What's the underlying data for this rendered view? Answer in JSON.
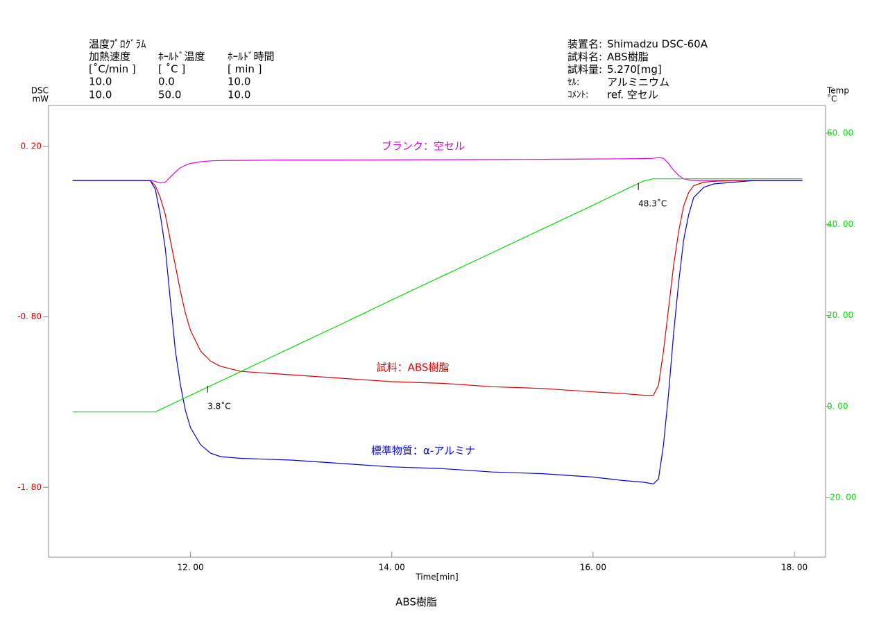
{
  "chart_data": {
    "type": "line",
    "title": "ABS樹脂",
    "xlabel": "Time[min]",
    "ylabel": [
      "DSC",
      "mW"
    ],
    "y2label": [
      "Temp",
      "˚C"
    ],
    "program": {
      "title": "温度ﾌﾟﾛｸﾞﾗﾑ",
      "headers": [
        "加熱速度",
        "ﾎｰﾙﾄﾞ温度",
        "ﾎｰﾙﾄﾞ時間"
      ],
      "units": [
        "[˚C/min ]",
        "[  ˚C   ]",
        "[  min  ]"
      ],
      "rows": [
        [
          "10.0",
          "0.0",
          "10.0"
        ],
        [
          "10.0",
          "50.0",
          "10.0"
        ]
      ]
    },
    "info": [
      {
        "key": "装置名:",
        "value": "Shimadzu DSC-60A"
      },
      {
        "key": "試料名:",
        "value": "ABS樹脂"
      },
      {
        "key": "試料量:",
        "value": "5.270[mg]"
      },
      {
        "key": "ｾﾙ:",
        "value": "アルミニウム"
      },
      {
        "key": "ｺﾒﾝﾄ:",
        "value": "ref. 空セル"
      }
    ],
    "xlim": [
      10.59,
      18.31
    ],
    "xticks": [
      {
        "value": 12,
        "label": "12. 00"
      },
      {
        "value": 14,
        "label": "14. 00"
      },
      {
        "value": 16,
        "label": "16. 00"
      },
      {
        "value": 18,
        "label": "18. 00"
      }
    ],
    "ylim": [
      -2.21,
      0.44
    ],
    "yticks": [
      {
        "value": 0.2,
        "label": "0. 20"
      },
      {
        "value": -0.8,
        "label": "-0. 80"
      },
      {
        "value": -1.8,
        "label": "-1. 80"
      }
    ],
    "y2lim": [
      -33.1,
      66.1
    ],
    "y2ticks": [
      {
        "value": 60,
        "label": "60. 00"
      },
      {
        "value": 40,
        "label": "40. 00"
      },
      {
        "value": 20,
        "label": "20. 00"
      },
      {
        "value": 0,
        "label": "0. 00"
      },
      {
        "value": -20,
        "label": "-20. 00"
      }
    ],
    "ytick_color": "#e00000",
    "y2tick_color": "#00dd00",
    "x": [
      10.83,
      11.0,
      11.2,
      11.4,
      11.6,
      11.65,
      11.7,
      11.75,
      11.8,
      11.85,
      11.9,
      11.95,
      12.0,
      12.1,
      12.2,
      12.3,
      12.5,
      13.0,
      13.5,
      14.0,
      14.5,
      15.0,
      15.5,
      16.0,
      16.3,
      16.5,
      16.6,
      16.65,
      16.7,
      16.75,
      16.8,
      16.85,
      16.9,
      16.95,
      17.0,
      17.1,
      17.2,
      17.4,
      17.6,
      18.0,
      18.08
    ],
    "series": [
      {
        "name": "ブランク：空セル",
        "color": "#e000e0",
        "values": [
          0,
          0,
          0,
          0,
          0,
          -0.005,
          -0.015,
          -0.01,
          0.02,
          0.05,
          0.075,
          0.09,
          0.1,
          0.11,
          0.115,
          0.117,
          0.118,
          0.12,
          0.12,
          0.121,
          0.122,
          0.123,
          0.124,
          0.126,
          0.127,
          0.128,
          0.13,
          0.135,
          0.13,
          0.1,
          0.06,
          0.03,
          0.01,
          0.003,
          0,
          0,
          0,
          0,
          0,
          0,
          0
        ]
      },
      {
        "name": "試料：ABS樹脂",
        "color": "#e00000",
        "values": [
          0,
          0,
          0,
          0,
          0,
          -0.03,
          -0.1,
          -0.2,
          -0.35,
          -0.5,
          -0.65,
          -0.78,
          -0.88,
          -1.0,
          -1.06,
          -1.09,
          -1.12,
          -1.14,
          -1.16,
          -1.18,
          -1.19,
          -1.21,
          -1.22,
          -1.24,
          -1.25,
          -1.26,
          -1.26,
          -1.2,
          -1.0,
          -0.75,
          -0.5,
          -0.3,
          -0.15,
          -0.07,
          -0.03,
          -0.01,
          -0.005,
          0,
          0,
          0,
          0
        ]
      },
      {
        "name": "標準物質：α-アルミナ",
        "color": "#0000e0",
        "values": [
          0,
          0,
          0,
          0,
          0,
          -0.05,
          -0.2,
          -0.4,
          -0.7,
          -1.0,
          -1.2,
          -1.35,
          -1.45,
          -1.55,
          -1.6,
          -1.62,
          -1.63,
          -1.64,
          -1.66,
          -1.68,
          -1.69,
          -1.71,
          -1.72,
          -1.74,
          -1.76,
          -1.77,
          -1.78,
          -1.75,
          -1.55,
          -1.25,
          -0.9,
          -0.6,
          -0.35,
          -0.2,
          -0.1,
          -0.04,
          -0.02,
          -0.01,
          0,
          0,
          0
        ]
      },
      {
        "name": "Temp",
        "color": "#00dd00",
        "axis": "y2",
        "values": [
          -1.2,
          -1.2,
          -1.2,
          -1.2,
          -1.2,
          -1.2,
          -0.68,
          -0.15,
          0.37,
          0.89,
          1.41,
          1.94,
          2.46,
          3.5,
          4.55,
          5.59,
          7.68,
          12.9,
          18.1,
          23.4,
          28.6,
          33.8,
          39.0,
          44.2,
          47.4,
          49.5,
          50.0,
          50.0,
          50.0,
          50.0,
          50.0,
          50.0,
          50.0,
          50.0,
          50.0,
          50.0,
          50.0,
          50.0,
          50.0,
          50.0,
          50.0
        ]
      }
    ],
    "annotations": [
      {
        "text": "3.8˚C",
        "x": 12.17,
        "y": 3.8
      },
      {
        "text": "48.3˚C",
        "x": 16.45,
        "y": 48.3
      }
    ]
  }
}
